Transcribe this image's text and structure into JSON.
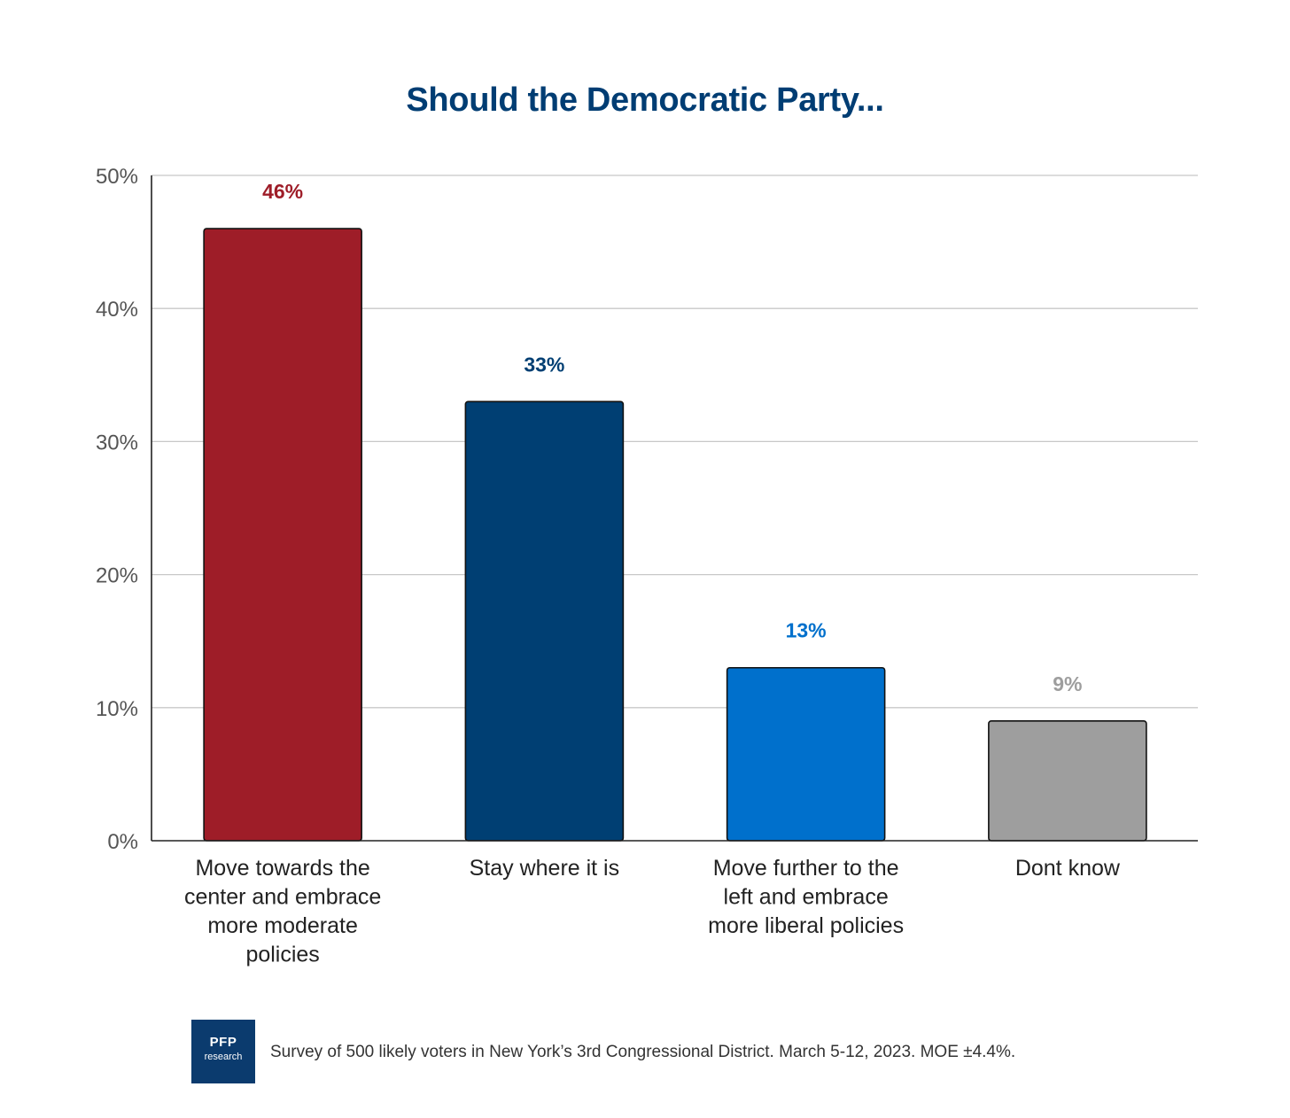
{
  "chart_data": {
    "type": "bar",
    "title": "Should the Democratic Party...",
    "categories": [
      [
        "Move towards the",
        "center and embrace",
        "more moderate",
        "policies"
      ],
      [
        "Stay where it is"
      ],
      [
        "Move further to the",
        "left and embrace",
        "more liberal policies"
      ],
      [
        "Dont know"
      ]
    ],
    "values": [
      46,
      33,
      13,
      9
    ],
    "value_labels": [
      "46%",
      "33%",
      "13%",
      "9%"
    ],
    "bar_colors": [
      "#9e1d28",
      "#003f73",
      "#0070cc",
      "#9e9e9e"
    ],
    "label_colors": [
      "#9e1d28",
      "#003f73",
      "#0070cc",
      "#9e9e9e"
    ],
    "y_ticks": [
      "0%",
      "10%",
      "20%",
      "30%",
      "40%",
      "50%"
    ],
    "ylim": [
      0,
      50
    ],
    "grid": true,
    "legend": "none"
  },
  "footer": {
    "logo_main": "PFP",
    "logo_sub": "research",
    "note": "Survey of 500 likely voters in New York’s 3rd Congressional District. March 5-12, 2023. MOE ±4.4%."
  }
}
